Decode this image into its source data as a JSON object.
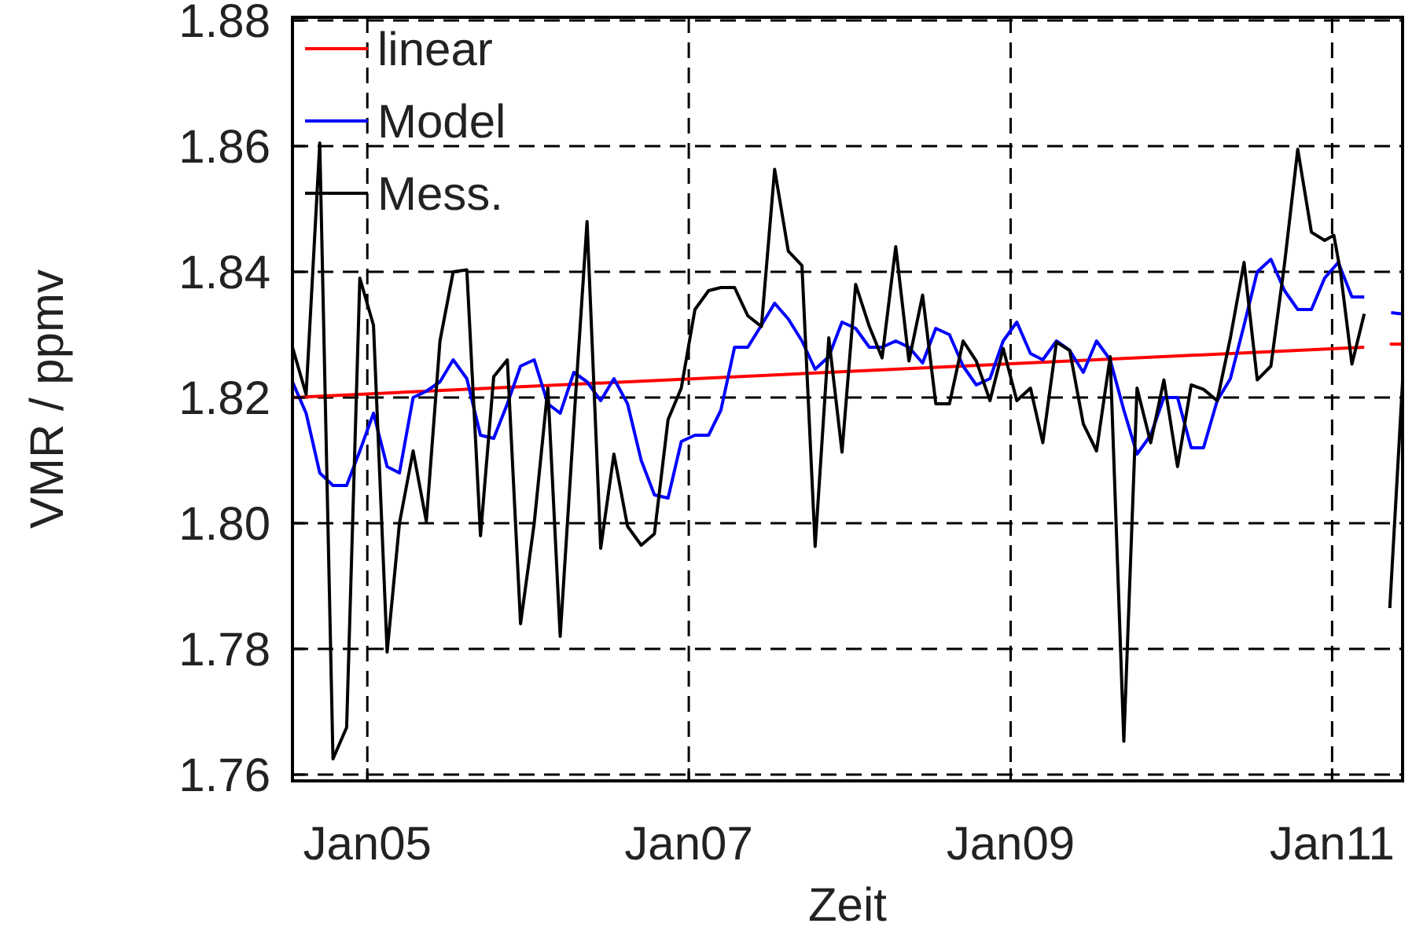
{
  "chart_data": {
    "type": "line",
    "xlabel": "Zeit",
    "ylabel": "VMR / ppmv",
    "xlim": [
      "2004-07-15",
      "2011-06-10"
    ],
    "ylim": [
      1.759,
      1.8805
    ],
    "xticks": [
      {
        "value": "2005-01-01",
        "label": "Jan05"
      },
      {
        "value": "2007-01-01",
        "label": "Jan07"
      },
      {
        "value": "2009-01-01",
        "label": "Jan09"
      },
      {
        "value": "2011-01-01",
        "label": "Jan11"
      }
    ],
    "yticks": [
      1.76,
      1.78,
      {
        "value": 1.8,
        "label": "1.80"
      },
      1.82,
      1.84,
      1.86,
      1.88
    ],
    "grid": true,
    "legend": "top left",
    "line_style": "solid",
    "series": [
      {
        "name": "linear",
        "color": "#ff0000",
        "x": [
          "2004-07-15",
          "2011-03-15"
        ],
        "values": [
          1.82,
          1.828
        ]
      },
      {
        "name": "Model",
        "color": "#0000ff",
        "x": [
          "2004-07-15",
          "2004-08-15",
          "2004-09-15",
          "2004-10-15",
          "2004-11-15",
          "2004-12-15",
          "2005-01-15",
          "2005-02-15",
          "2005-03-15",
          "2005-04-15",
          "2005-05-15",
          "2005-06-15",
          "2005-07-15",
          "2005-08-15",
          "2005-09-15",
          "2005-10-15",
          "2005-11-15",
          "2005-12-15",
          "2006-01-15",
          "2006-02-15",
          "2006-03-15",
          "2006-04-15",
          "2006-05-15",
          "2006-06-15",
          "2006-07-15",
          "2006-08-15",
          "2006-09-15",
          "2006-10-15",
          "2006-11-15",
          "2006-12-15",
          "2007-01-15",
          "2007-02-15",
          "2007-03-15",
          "2007-04-15",
          "2007-05-15",
          "2007-06-15",
          "2007-07-15",
          "2007-08-15",
          "2007-09-15",
          "2007-10-15",
          "2007-11-15",
          "2007-12-15",
          "2008-01-15",
          "2008-02-15",
          "2008-03-15",
          "2008-04-15",
          "2008-05-15",
          "2008-06-15",
          "2008-07-15",
          "2008-08-15",
          "2008-09-15",
          "2008-10-15",
          "2008-11-15",
          "2008-12-15",
          "2009-01-15",
          "2009-02-15",
          "2009-03-15",
          "2009-04-15",
          "2009-05-15",
          "2009-06-15",
          "2009-07-15",
          "2009-08-15",
          "2009-09-15",
          "2009-10-15",
          "2009-11-15",
          "2009-12-15",
          "2010-01-15",
          "2010-02-15",
          "2010-03-15",
          "2010-04-15",
          "2010-05-15",
          "2010-06-15",
          "2010-07-15",
          "2010-08-15",
          "2010-09-15",
          "2010-10-15",
          "2010-11-15",
          "2010-12-15",
          "2011-01-15",
          "2011-02-15",
          "2011-03-15"
        ],
        "values": [
          1.8225,
          1.8175,
          1.808,
          1.806,
          1.806,
          1.8115,
          1.8175,
          1.809,
          1.808,
          1.82,
          1.821,
          1.8225,
          1.826,
          1.823,
          1.814,
          1.8135,
          1.819,
          1.825,
          1.826,
          1.819,
          1.8175,
          1.824,
          1.8225,
          1.8195,
          1.823,
          1.819,
          1.81,
          1.8045,
          1.804,
          1.813,
          1.814,
          1.814,
          1.818,
          1.828,
          1.828,
          1.8315,
          1.835,
          1.8325,
          1.829,
          1.8245,
          1.8265,
          1.832,
          1.831,
          1.828,
          1.828,
          1.829,
          1.828,
          1.8255,
          1.831,
          1.83,
          1.825,
          1.822,
          1.823,
          1.829,
          1.832,
          1.827,
          1.826,
          1.829,
          1.8275,
          1.824,
          1.829,
          1.826,
          1.818,
          1.811,
          1.814,
          1.82,
          1.82,
          1.812,
          1.812,
          1.8195,
          1.823,
          1.8315,
          1.84,
          1.842,
          1.837,
          1.834,
          1.834,
          1.839,
          1.8415,
          1.836,
          1.836
        ]
      },
      {
        "name": "Mess.",
        "color": "#000000",
        "x": [
          "2004-07-15",
          "2004-08-15",
          "2004-09-15",
          "2004-10-15",
          "2004-11-15",
          "2004-12-15",
          "2005-01-15",
          "2005-02-15",
          "2005-03-15",
          "2005-04-15",
          "2005-05-15",
          "2005-06-15",
          "2005-07-15",
          "2005-08-15",
          "2005-09-15",
          "2005-10-15",
          "2005-11-15",
          "2005-12-15",
          "2006-01-15",
          "2006-02-15",
          "2006-03-15",
          "2006-04-15",
          "2006-05-15",
          "2006-06-15",
          "2006-07-15",
          "2006-08-15",
          "2006-09-15",
          "2006-10-15",
          "2006-11-15",
          "2006-12-15",
          "2007-01-15",
          "2007-02-15",
          "2007-03-15",
          "2007-04-15",
          "2007-05-15",
          "2007-06-15",
          "2007-07-15",
          "2007-08-15",
          "2007-09-15",
          "2007-10-15",
          "2007-11-15",
          "2007-12-15",
          "2008-01-15",
          "2008-02-15",
          "2008-03-15",
          "2008-04-15",
          "2008-05-15",
          "2008-06-15",
          "2008-07-15",
          "2008-08-15",
          "2008-09-15",
          "2008-10-15",
          "2008-11-15",
          "2008-12-15",
          "2009-01-15",
          "2009-02-15",
          "2009-03-15",
          "2009-04-15",
          "2009-05-15",
          "2009-06-15",
          "2009-07-15",
          "2009-08-15",
          "2009-09-15",
          "2009-10-15",
          "2009-11-15",
          "2009-12-15",
          "2010-01-15",
          "2010-02-15",
          "2010-03-15",
          "2010-04-15",
          "2010-05-15",
          "2010-06-15",
          "2010-07-15",
          "2010-08-15",
          "2010-09-15",
          "2010-10-15",
          "2010-11-15",
          "2010-12-15",
          "2011-01-05",
          "2011-01-20",
          "2011-02-15",
          "2011-03-15"
        ],
        "values": [
          1.828,
          1.8205,
          1.8605,
          1.7625,
          1.7675,
          1.839,
          1.8315,
          1.7795,
          1.8,
          1.8115,
          1.8003,
          1.829,
          1.84,
          1.8403,
          1.798,
          1.8233,
          1.826,
          1.784,
          1.8,
          1.8215,
          1.782,
          1.816,
          1.848,
          1.796,
          1.811,
          1.7995,
          1.7965,
          1.7983,
          1.8165,
          1.8215,
          1.834,
          1.837,
          1.8375,
          1.8375,
          1.833,
          1.8313,
          1.8563,
          1.8433,
          1.841,
          1.7963,
          1.8295,
          1.8113,
          1.838,
          1.8313,
          1.8263,
          1.844,
          1.8258,
          1.8363,
          1.819,
          1.819,
          1.829,
          1.8258,
          1.8195,
          1.8278,
          1.8195,
          1.8215,
          1.8128,
          1.8288,
          1.8275,
          1.8158,
          1.8115,
          1.8265,
          1.7653,
          1.8215,
          1.8128,
          1.8228,
          1.809,
          1.822,
          1.8213,
          1.8195,
          1.8295,
          1.8415,
          1.8228,
          1.825,
          1.8413,
          1.8595,
          1.8463,
          1.845,
          1.8458,
          1.84,
          1.8253,
          1.8333
        ]
      },
      {
        "color": "#ff0000",
        "x": [
          "2011-05-12",
          "2011-06-10"
        ],
        "values": [
          1.8285,
          1.8285
        ]
      },
      {
        "color": "#0000ff",
        "x": [
          "2011-05-15",
          "2011-06-10"
        ],
        "values": [
          1.8335,
          1.8333
        ]
      },
      {
        "color": "#000000",
        "x": [
          "2011-05-12",
          "2011-06-10"
        ],
        "values": [
          1.7865,
          1.8225
        ]
      }
    ]
  }
}
